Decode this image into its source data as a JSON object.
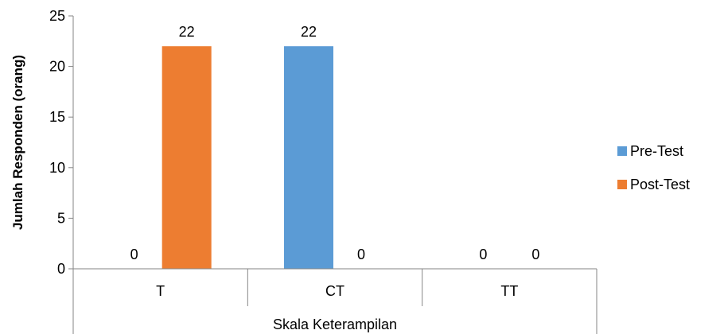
{
  "chart_data": {
    "type": "bar",
    "categories": [
      "T",
      "CT",
      "TT"
    ],
    "series": [
      {
        "name": "Pre-Test",
        "values": [
          0,
          22,
          0
        ],
        "color": "#5B9BD5"
      },
      {
        "name": "Post-Test",
        "values": [
          22,
          0,
          0
        ],
        "color": "#ED7D31"
      }
    ],
    "xlabel": "Skala Keterampilan",
    "ylabel": "Jumlah Responden (orang)",
    "ylim": [
      0,
      25
    ],
    "yticks": [
      0,
      5,
      10,
      15,
      20,
      25
    ],
    "grid": false,
    "legend_position": "right"
  }
}
